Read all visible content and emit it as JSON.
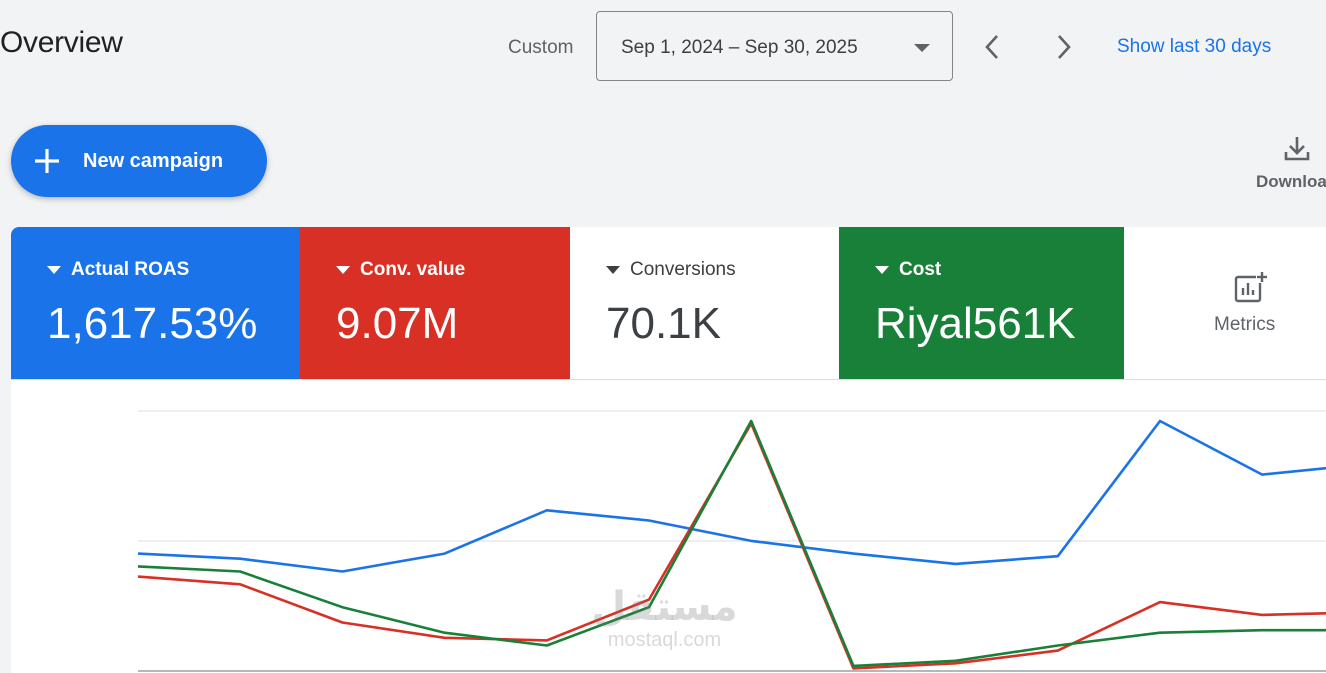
{
  "header": {
    "title": "Overview",
    "range_label": "Custom",
    "date_range": "Sep 1, 2024 – Sep 30, 2025",
    "show_last": "Show last 30 days"
  },
  "toolbar": {
    "new_campaign": "New campaign",
    "download": "Download"
  },
  "scorecards": [
    {
      "name": "Actual ROAS",
      "value": "1,617.53%",
      "color": "#1a73e8"
    },
    {
      "name": "Conv. value",
      "value": "9.07M",
      "color": "#d93025"
    },
    {
      "name": "Conversions",
      "value": "70.1K",
      "color": "#ffffff"
    },
    {
      "name": "Cost",
      "value": "Riyal561K",
      "color": "#188038"
    }
  ],
  "metrics_button": "Metrics",
  "watermark": {
    "arabic": "مستقل",
    "latin": "mostaql.com"
  },
  "chart_data": {
    "type": "line",
    "x": [
      0,
      1,
      2,
      3,
      4,
      5,
      6,
      7,
      8,
      9,
      10,
      11,
      12
    ],
    "ylim": [
      0,
      100
    ],
    "grid": true,
    "series": [
      {
        "key": "roas",
        "color": "#1a73e8",
        "values": [
          46,
          44,
          39,
          46,
          63,
          59,
          51,
          46,
          42,
          45,
          98,
          77,
          81
        ]
      },
      {
        "key": "conv_value",
        "color": "#d93025",
        "values": [
          37,
          34,
          19,
          13,
          12,
          28,
          97,
          1,
          3,
          8,
          27,
          22,
          23
        ]
      },
      {
        "key": "cost",
        "color": "#188038",
        "values": [
          41,
          39,
          25,
          15,
          10,
          25,
          98,
          2,
          4,
          10,
          15,
          16,
          16
        ]
      }
    ]
  }
}
